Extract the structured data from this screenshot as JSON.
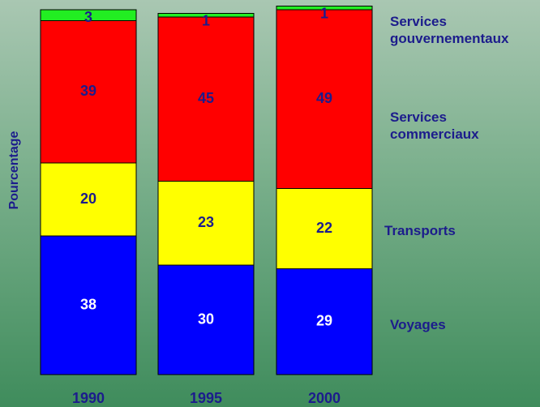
{
  "chart_data": {
    "type": "stacked_bar",
    "y_label": "Pourcentage",
    "categories": [
      "1990",
      "1995",
      "2000"
    ],
    "series": [
      {
        "name": "Voyages",
        "color": "#0000ff",
        "values": [
          38,
          30,
          29
        ]
      },
      {
        "name": "Transports",
        "color": "#ffff00",
        "values": [
          20,
          23,
          22
        ]
      },
      {
        "name": "Services commerciaux",
        "color": "#ff0000",
        "values": [
          39,
          45,
          49
        ]
      },
      {
        "name": "Services gouvernementaux",
        "color": "#22ee22",
        "values": [
          3,
          1,
          1
        ]
      }
    ]
  }
}
